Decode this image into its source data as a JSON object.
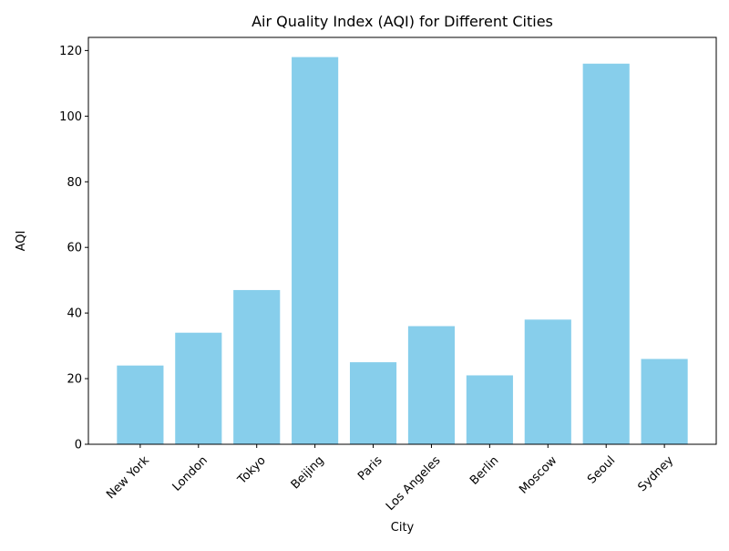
{
  "chart_data": {
    "type": "bar",
    "title": "Air Quality Index (AQI) for Different Cities",
    "xlabel": "City",
    "ylabel": "AQI",
    "categories": [
      "New York",
      "London",
      "Tokyo",
      "Beijing",
      "Paris",
      "Los Angeles",
      "Berlin",
      "Moscow",
      "Seoul",
      "Sydney"
    ],
    "values": [
      24,
      34,
      47,
      118,
      25,
      36,
      21,
      38,
      116,
      26
    ],
    "ylim": [
      0,
      124
    ],
    "yticks": [
      0,
      20,
      40,
      60,
      80,
      100,
      120
    ],
    "bar_color": "#87ceeb",
    "grid": false,
    "legend": "none"
  }
}
